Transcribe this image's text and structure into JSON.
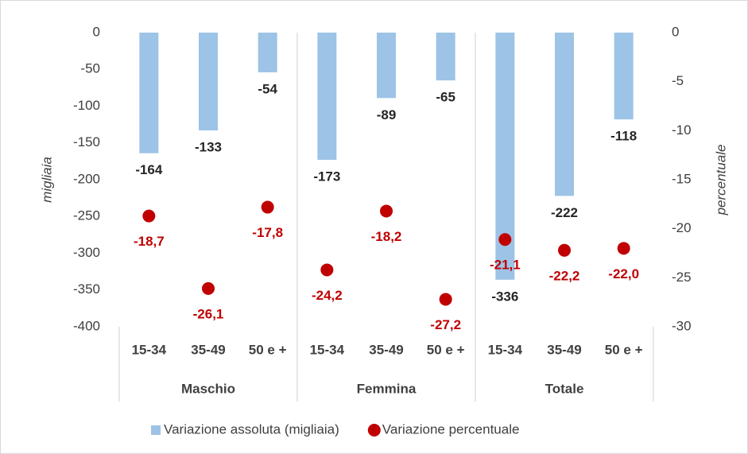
{
  "chart_data": {
    "type": "combo",
    "categories": [
      "15-34",
      "35-49",
      "50 e +",
      "15-34",
      "35-49",
      "50 e +",
      "15-34",
      "35-49",
      "50 e +"
    ],
    "groups": [
      "Maschio",
      "Femmina",
      "Totale"
    ],
    "ylabel": "migliaia",
    "y2label": "percentuale",
    "ylim": [
      -400,
      0
    ],
    "yticks": [
      0,
      -50,
      -100,
      -150,
      -200,
      -250,
      -300,
      -350,
      -400
    ],
    "y2lim": [
      -30,
      0
    ],
    "y2ticks": [
      0,
      -5,
      -10,
      -15,
      -20,
      -25,
      -30
    ],
    "series": [
      {
        "name": "Variazione assoluta (migliaia)",
        "type": "bar",
        "color": "#9dc3e6",
        "values": [
          -164,
          -133,
          -54,
          -173,
          -89,
          -65,
          -336,
          -222,
          -118
        ]
      },
      {
        "name": "Variazione percentuale",
        "type": "scatter",
        "color": "#c00000",
        "axis": "y2",
        "values": [
          -18.7,
          -26.1,
          -17.8,
          -24.2,
          -18.2,
          -27.2,
          -21.1,
          -22.2,
          -22.0
        ],
        "value_labels": [
          "-18,7",
          "-26,1",
          "-17,8",
          "-24,2",
          "-18,2",
          "-27,2",
          "-21,1",
          "-22,2",
          "-22,0"
        ]
      }
    ],
    "legend": "bottom"
  }
}
